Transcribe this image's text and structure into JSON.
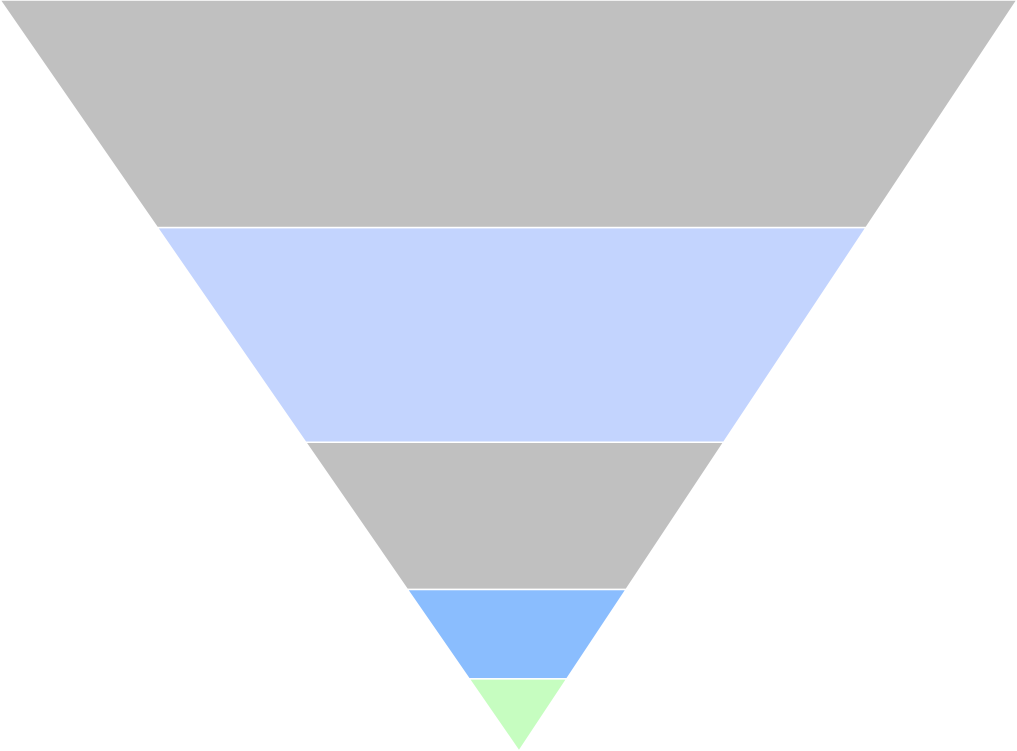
{
  "funnel": {
    "orientation": "inverted-triangle",
    "segment_count": 5,
    "segments": [
      {
        "level": 1,
        "color": "#c0c0c0",
        "share_of_height": 0.303
      },
      {
        "level": 2,
        "color": "#c3d4fe",
        "share_of_height": 0.286
      },
      {
        "level": 3,
        "color": "#c0c0c0",
        "share_of_height": 0.196
      },
      {
        "level": 4,
        "color": "#8abdfe",
        "share_of_height": 0.119
      },
      {
        "level": 5,
        "color": "#c6fdc0",
        "share_of_height": 0.096
      }
    ]
  }
}
